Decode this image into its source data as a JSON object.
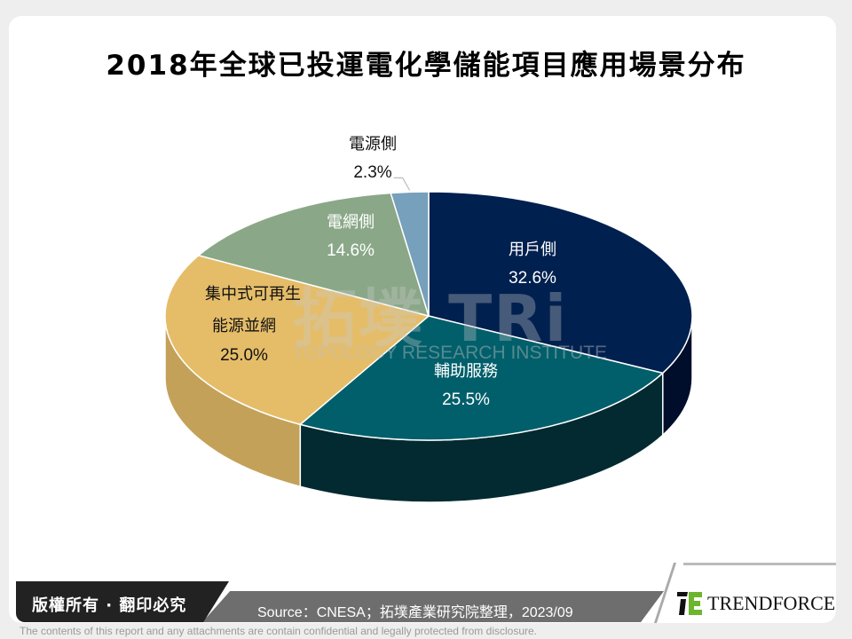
{
  "title": "2018年全球已投運電化學儲能項目應用場景分布",
  "chart_data": {
    "type": "pie",
    "title": "2018年全球已投運電化學儲能項目應用場景分布",
    "style": "3d-pie",
    "start_angle": "12 o'clock, clockwise",
    "categories": [
      "用戶側",
      "輔助服務",
      "集中式可再生能源並網",
      "電網側",
      "電源側"
    ],
    "values": [
      32.6,
      25.5,
      25.0,
      14.6,
      2.3
    ],
    "unit": "%",
    "colors": [
      "#00204f",
      "#005f6b",
      "#e5bd69",
      "#8aa888",
      "#76a0bb"
    ],
    "side_colors": [
      "#000e2b",
      "#022a30",
      "#c4a159",
      "#6f8a6d",
      "#5d8198"
    ],
    "labels": [
      {
        "name_lines": [
          "用戶側"
        ],
        "pct": "32.6%"
      },
      {
        "name_lines": [
          "輔助服務"
        ],
        "pct": "25.5%"
      },
      {
        "name_lines": [
          "集中式可再生",
          "能源並網"
        ],
        "pct": "25.0%"
      },
      {
        "name_lines": [
          "電網側"
        ],
        "pct": "14.6%"
      },
      {
        "name_lines": [
          "電源側"
        ],
        "pct": "2.3%"
      }
    ],
    "legend": "none (data labels on slices)"
  },
  "watermark": {
    "text": "拓墣 TRi",
    "subtext": "TOPOLOGY RESEARCH INSTITUTE"
  },
  "footer": {
    "copyright": "版權所有 · 翻印必究",
    "source": "Source：CNESA；拓墣產業研究院整理，2023/09",
    "logo": "TRENDFORCE",
    "disclaimer": "The contents of this report and any attachments are contain confidential and legally protected from disclosure."
  }
}
